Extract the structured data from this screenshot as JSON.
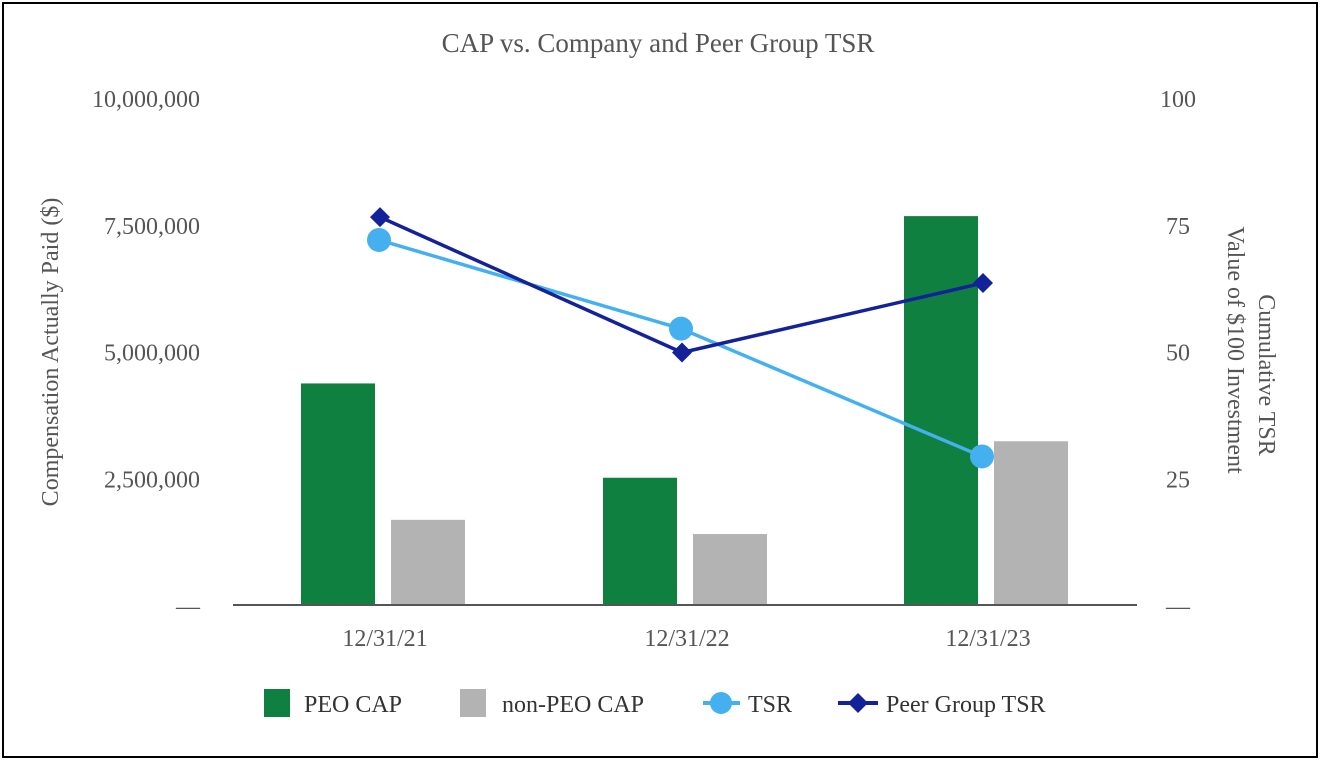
{
  "chart_data": {
    "type": "bar+line",
    "title": "CAP vs. Company and Peer Group TSR",
    "categories": [
      "12/31/21",
      "12/31/22",
      "12/31/23"
    ],
    "left_axis": {
      "label": "Compensation Actually Paid ($)",
      "ticks": [
        "10,000,000",
        "7,500,000",
        "5,000,000",
        "2,500,000",
        "—"
      ],
      "tick_values": [
        10000000,
        7500000,
        5000000,
        2500000,
        0
      ],
      "range": [
        0,
        10000000
      ]
    },
    "right_axis": {
      "label_line1": "Cumulative TSR",
      "label_line2": "Value of $100 Investment",
      "ticks": [
        "100",
        "75",
        "50",
        "25",
        "—"
      ],
      "tick_values": [
        100,
        75,
        50,
        25,
        0
      ],
      "range": [
        0,
        100
      ]
    },
    "bar_series": [
      {
        "name": "PEO CAP",
        "color": "#108040",
        "values": [
          4370000,
          2510000,
          7670000
        ]
      },
      {
        "name": "non-PEO CAP",
        "color": "#b3b3b3",
        "values": [
          1680000,
          1400000,
          3230000
        ]
      }
    ],
    "line_series": [
      {
        "name": "TSR",
        "color": "#45b0f0",
        "marker": "circle",
        "values": [
          72.0,
          54.5,
          29.3
        ]
      },
      {
        "name": "Peer Group TSR",
        "color": "#14229a",
        "marker": "diamond",
        "values": [
          76.5,
          49.8,
          63.5
        ]
      }
    ],
    "legend_position": "bottom"
  }
}
